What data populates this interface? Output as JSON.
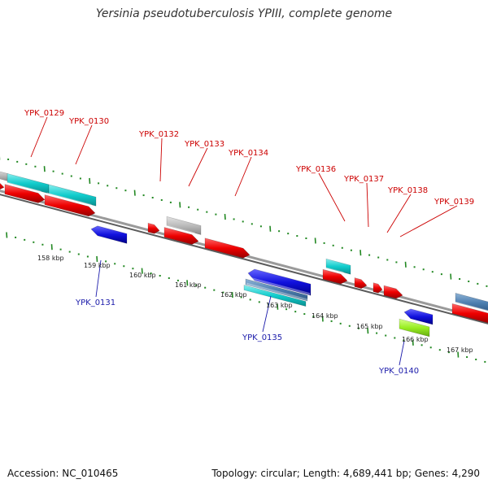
{
  "title": "Yersinia pseudotuberculosis YPIII, complete genome",
  "footer": {
    "accession": "Accession: NC_010465",
    "stats": "Topology: circular; Length: 4,689,441 bp; Genes: 4,290"
  },
  "colors": {
    "forward_label": "#cc0000",
    "reverse_label": "#1a1aaa",
    "tick": "#228822",
    "backbone": "#808080",
    "red": "#ee0000",
    "cyan": "#11cccc",
    "blue": "#1111dd",
    "grey": "#bbbbbb",
    "steel": "#4d7fb0",
    "lime": "#99ee22"
  },
  "scale_ticks": [
    "158 kbp",
    "159 kbp",
    "160 kbp",
    "161 kbp",
    "162 kbp",
    "163 kbp",
    "164 kbp",
    "165 kbp",
    "166 kbp",
    "167 kbp"
  ],
  "top_labels": [
    "YPK_0129",
    "YPK_0130",
    "YPK_0132",
    "YPK_0133",
    "YPK_0134",
    "YPK_0136",
    "YPK_0137",
    "YPK_0138",
    "YPK_0139"
  ],
  "bottom_labels": [
    "YPK_0131",
    "YPK_0135",
    "YPK_0140"
  ]
}
